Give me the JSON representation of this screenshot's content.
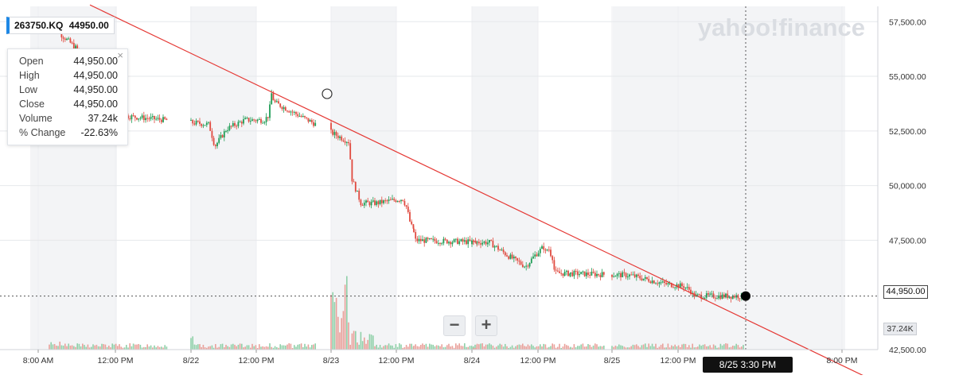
{
  "ticker": {
    "symbol": "263750.KQ",
    "price": "44950.00"
  },
  "ohlc_panel": {
    "rows": [
      {
        "label": "Open",
        "value": "44,950.00"
      },
      {
        "label": "High",
        "value": "44,950.00"
      },
      {
        "label": "Low",
        "value": "44,950.00"
      },
      {
        "label": "Close",
        "value": "44,950.00"
      },
      {
        "label": "Volume",
        "value": "37.24k"
      },
      {
        "label": "% Change",
        "value": "-22.63%"
      }
    ],
    "close_glyph": "×"
  },
  "watermark": "yahoo!finance",
  "zoom": {
    "minus": "−",
    "plus": "+"
  },
  "badges": {
    "price": "44,950.00",
    "volume": "37.24K",
    "time": "8/25 3:30 PM"
  },
  "colors": {
    "up": "#1f9d55",
    "down": "#e04a3f",
    "trendline": "#e53935",
    "accent": "#1e88e5"
  },
  "chart_data": {
    "type": "candlestick",
    "ylim": [
      42500,
      58200
    ],
    "y_ticks": [
      "57,500.00",
      "55,000.00",
      "52,500.00",
      "50,000.00",
      "47,500.00",
      "42,500.00"
    ],
    "y_tick_values": [
      57500,
      55000,
      52500,
      50000,
      47500,
      42500
    ],
    "x_ticks": [
      "8:00 AM",
      "12:00 PM",
      "8/22",
      "12:00 PM",
      "8/23",
      "12:00 PM",
      "8/24",
      "12:00 PM",
      "8/25",
      "12:00 PM",
      "8:00 PM"
    ],
    "close_path": [
      [
        "8/21 8:00 AM",
        58300
      ],
      [
        "8/21 9:10 AM",
        57000
      ],
      [
        "8/21 10:30 AM",
        56000
      ],
      [
        "8/21 12:30 PM",
        55700
      ],
      [
        "8/21 1:40 PM",
        55600
      ],
      [
        "8/21 2:30 PM",
        55200
      ],
      [
        "8/21 3:10 PM",
        54300
      ],
      [
        "8/21 3:30 PM",
        53200
      ],
      [
        "8/22 9:00 AM",
        52800
      ],
      [
        "8/22 9:20 AM",
        51800
      ],
      [
        "8/22 10:00 AM",
        52600
      ],
      [
        "8/22 11:00 AM",
        53000
      ],
      [
        "8/22 12:30 PM",
        53000
      ],
      [
        "8/22 1:40 PM",
        53200
      ],
      [
        "8/22 2:20 PM",
        53800
      ],
      [
        "8/22 2:40 PM",
        54300
      ],
      [
        "8/22 3:00 PM",
        54000
      ],
      [
        "8/22 3:30 PM",
        53800
      ],
      [
        "8/23 9:00 AM",
        52000
      ],
      [
        "8/23 9:10 AM",
        50300
      ],
      [
        "8/23 9:40 AM",
        49200
      ],
      [
        "8/23 10:30 AM",
        49200
      ],
      [
        "8/23 12:00 PM",
        49400
      ],
      [
        "8/23 1:10 PM",
        49000
      ],
      [
        "8/23 2:00 PM",
        48400
      ],
      [
        "8/23 2:40 PM",
        48100
      ],
      [
        "8/23 3:00 PM",
        48200
      ],
      [
        "8/23 3:30 PM",
        47500
      ],
      [
        "8/24 9:00 AM",
        47400
      ],
      [
        "8/24 10:00 AM",
        46800
      ],
      [
        "8/24 11:00 AM",
        46300
      ],
      [
        "8/24 11:30 AM",
        46800
      ],
      [
        "8/24 12:00 PM",
        47200
      ],
      [
        "8/24 12:40 PM",
        46900
      ],
      [
        "8/24 1:20 PM",
        47200
      ],
      [
        "8/24 2:00 PM",
        46900
      ],
      [
        "8/24 2:40 PM",
        46700
      ],
      [
        "8/24 3:10 PM",
        46100
      ],
      [
        "8/24 3:30 PM",
        46000
      ],
      [
        "8/25 9:00 AM",
        45900
      ],
      [
        "8/25 10:00 AM",
        45700
      ],
      [
        "8/25 11:00 AM",
        45500
      ],
      [
        "8/25 12:00 PM",
        45400
      ],
      [
        "8/25 1:00 PM",
        45300
      ],
      [
        "8/25 2:00 PM",
        45200
      ],
      [
        "8/25 2:40 PM",
        45000
      ],
      [
        "8/25 3:00 PM",
        45000
      ],
      [
        "8/25 3:30 PM",
        44950
      ]
    ],
    "trendline": [
      [
        "8/21 8:00 AM",
        59400
      ],
      [
        "8/25 4:00 PM",
        44950
      ]
    ],
    "trendline_anchor": {
      "time": "8/22 3:30 PM",
      "value": 54200
    },
    "last": {
      "time": "8/25 3:30 PM",
      "value": 44950,
      "volume": "37.24K"
    }
  }
}
